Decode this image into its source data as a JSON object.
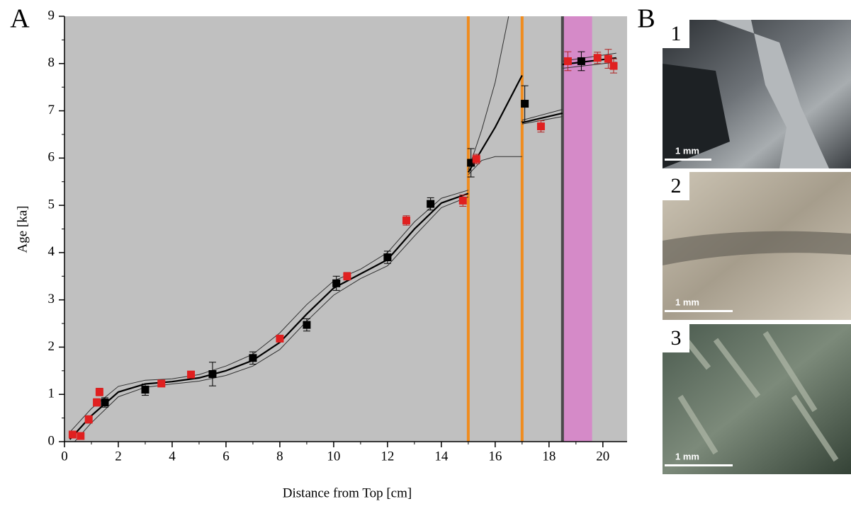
{
  "chart_data": {
    "type": "scatter",
    "panel_label": "A",
    "xlabel": "Distance from Top [cm]",
    "ylabel": "Age [ka]",
    "xlim": [
      0,
      20.9
    ],
    "ylim": [
      0,
      9
    ],
    "xticks": [
      0,
      2,
      4,
      6,
      8,
      10,
      12,
      14,
      16,
      18,
      20
    ],
    "yticks": [
      0,
      1,
      2,
      3,
      4,
      5,
      6,
      7,
      8,
      9
    ],
    "background": "#c0c0c0",
    "series": [
      {
        "color": "#000000",
        "x": [
          1.5,
          3.0,
          5.5,
          7.0,
          9.0,
          10.1,
          12.0,
          13.6,
          15.1,
          17.1,
          19.2
        ],
        "values": [
          0.83,
          1.1,
          1.43,
          1.77,
          2.47,
          3.35,
          3.9,
          5.03,
          5.9,
          7.15,
          8.05
        ],
        "errors": [
          0.1,
          0.12,
          0.25,
          0.13,
          0.13,
          0.15,
          0.13,
          0.13,
          0.3,
          0.38,
          0.2
        ]
      },
      {
        "color": "#e02020",
        "x": [
          0.3,
          0.6,
          0.9,
          1.2,
          1.3,
          3.6,
          4.7,
          8.0,
          10.5,
          12.7,
          14.8,
          15.3,
          17.7,
          18.7,
          19.8,
          20.2,
          20.4
        ],
        "values": [
          0.15,
          0.12,
          0.47,
          0.83,
          1.05,
          1.23,
          1.42,
          2.18,
          3.5,
          4.68,
          5.1,
          5.98,
          6.67,
          8.05,
          8.12,
          8.1,
          7.95
        ],
        "errors": [
          0.05,
          0.05,
          0.08,
          0.08,
          0.08,
          0.05,
          0.05,
          0.05,
          0.08,
          0.1,
          0.12,
          0.1,
          0.12,
          0.2,
          0.12,
          0.2,
          0.15
        ]
      }
    ],
    "curves": [
      {
        "color": "#000000",
        "x": [
          0.2,
          1,
          2,
          3,
          4,
          5,
          6,
          7,
          8,
          9,
          10,
          11,
          12,
          13,
          14,
          15,
          null,
          15,
          16,
          17,
          null,
          17,
          18.5,
          null,
          18.5,
          20.5
        ],
        "values": [
          0.05,
          0.55,
          1.05,
          1.22,
          1.27,
          1.35,
          1.5,
          1.72,
          2.1,
          2.7,
          3.25,
          3.55,
          3.85,
          4.5,
          5.05,
          5.25,
          null,
          5.7,
          6.65,
          7.75,
          null,
          6.75,
          6.95,
          null,
          7.98,
          8.12
        ]
      },
      {
        "color": "#303030",
        "x": [
          0.2,
          1,
          2,
          3,
          4,
          5,
          6,
          7,
          8,
          9,
          10,
          11,
          12,
          13,
          14,
          15,
          null,
          15,
          15.5,
          16,
          16.5,
          null,
          17,
          18.5,
          null,
          18.5,
          20.5
        ],
        "values": [
          0.2,
          0.7,
          1.17,
          1.3,
          1.33,
          1.42,
          1.6,
          1.85,
          2.3,
          2.9,
          3.4,
          3.65,
          4.0,
          4.65,
          5.15,
          5.32,
          null,
          5.75,
          6.6,
          7.6,
          9.0,
          null,
          6.8,
          7.03,
          null,
          8.05,
          8.22
        ]
      },
      {
        "color": "#303030",
        "x": [
          0.3,
          1,
          2,
          3,
          4,
          5,
          6,
          7,
          8,
          9,
          10,
          11,
          12,
          13,
          14,
          15,
          null,
          15,
          15.5,
          16,
          17,
          null,
          17,
          18.5,
          null,
          18.5,
          20.5
        ],
        "values": [
          -0.05,
          0.4,
          0.95,
          1.15,
          1.22,
          1.28,
          1.4,
          1.6,
          1.95,
          2.55,
          3.1,
          3.45,
          3.72,
          4.35,
          4.95,
          5.18,
          null,
          5.65,
          5.95,
          6.03,
          6.03,
          null,
          6.72,
          6.88,
          null,
          7.9,
          8.03
        ]
      }
    ],
    "markers": [
      {
        "x": 15.0,
        "color": "#f08c1e"
      },
      {
        "x": 17.0,
        "color": "#f08c1e"
      },
      {
        "x": 18.5,
        "color": "#4a4a4a"
      }
    ],
    "band": {
      "x": [
        18.5,
        19.6
      ],
      "color": "#d58ac8"
    }
  },
  "panel_b": {
    "label": "B",
    "images": [
      {
        "number": "1",
        "scale": "1 mm"
      },
      {
        "number": "2",
        "scale": "1 mm"
      },
      {
        "number": "3",
        "scale": "1 mm"
      }
    ]
  }
}
